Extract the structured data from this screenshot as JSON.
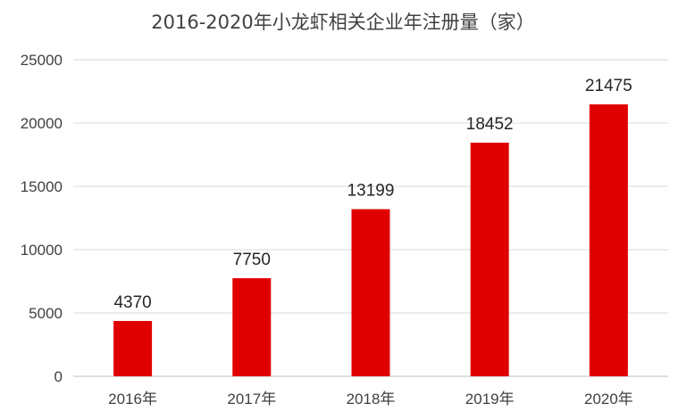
{
  "chart_data": {
    "type": "bar",
    "title": "2016-2020年小龙虾相关企业年注册量（家）",
    "categories": [
      "2016年",
      "2017年",
      "2018年",
      "2019年",
      "2020年"
    ],
    "values": [
      4370,
      7750,
      13199,
      18452,
      21475
    ],
    "data_labels": [
      "4370",
      "7750",
      "13199",
      "18452",
      "21475"
    ],
    "y_ticks": [
      "0",
      "5000",
      "10000",
      "15000",
      "20000",
      "25000"
    ],
    "ylim": [
      0,
      25000
    ],
    "grid": true,
    "legend": "none",
    "bar_color": "#e00000"
  }
}
